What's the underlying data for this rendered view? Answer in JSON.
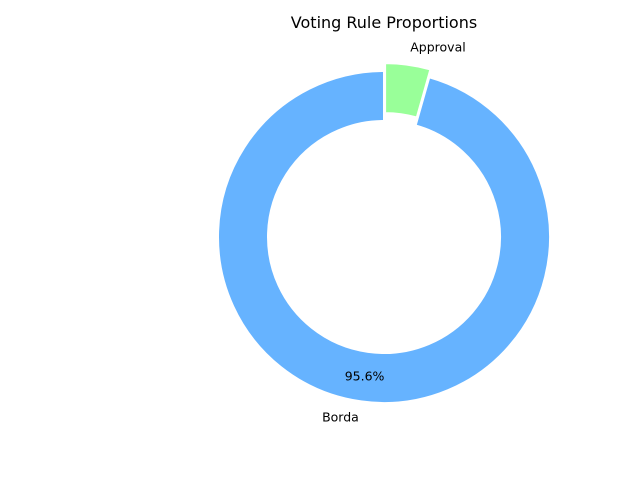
{
  "chart_data": {
    "type": "pie",
    "title": "Voting Rule Proportions",
    "categories": [
      "Borda",
      "Approval"
    ],
    "values": [
      95.6,
      4.4
    ],
    "percent_labels": [
      "95.6%",
      ""
    ],
    "colors": [
      "#66b3ff",
      "#99ff99"
    ],
    "donut": true,
    "exploded": [
      "Approval"
    ],
    "edge_color": "#ffffff"
  }
}
